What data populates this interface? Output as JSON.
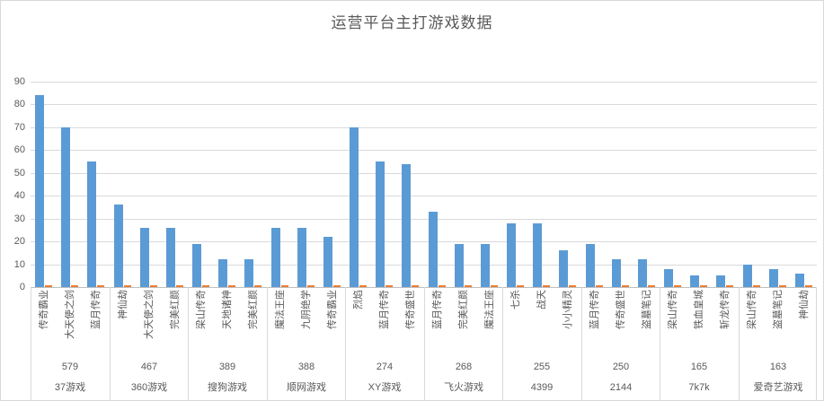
{
  "chart_data": {
    "type": "bar",
    "title": "运营平台主打游戏数据",
    "xlabel": "",
    "ylabel": "",
    "ylim": [
      0,
      90
    ],
    "yticks": [
      0,
      10,
      20,
      30,
      40,
      50,
      60,
      70,
      80,
      90
    ],
    "grid": true,
    "legend": "none",
    "axis_levels": [
      "game-name",
      "group-total",
      "platform-name"
    ],
    "colors": {
      "bar": "#5b9bd5",
      "secondary_marker": "#ed7d31",
      "text": "#595959",
      "gridline": "#d9d9d9",
      "axis_line": "#bfbfbf"
    },
    "secondary_series_value": 0.5,
    "groups": [
      {
        "platform": "37游戏",
        "total": "579",
        "games": [
          {
            "name": "传奇霸业",
            "value": 84
          },
          {
            "name": "大天使之剑",
            "value": 70
          },
          {
            "name": "蓝月传奇",
            "value": 55
          }
        ]
      },
      {
        "platform": "360游戏",
        "total": "467",
        "games": [
          {
            "name": "神仙劫",
            "value": 36
          },
          {
            "name": "大天使之剑",
            "value": 26
          },
          {
            "name": "完美红颜",
            "value": 26
          }
        ]
      },
      {
        "platform": "搜狗游戏",
        "total": "389",
        "games": [
          {
            "name": "梁山传奇",
            "value": 19
          },
          {
            "name": "天地诸神",
            "value": 12
          },
          {
            "name": "完美红颜",
            "value": 12
          }
        ]
      },
      {
        "platform": "顺网游戏",
        "total": "388",
        "games": [
          {
            "name": "魔法王座",
            "value": 26
          },
          {
            "name": "九阴绝学",
            "value": 26
          },
          {
            "name": "传奇霸业",
            "value": 22
          }
        ]
      },
      {
        "platform": "XY游戏",
        "total": "274",
        "games": [
          {
            "name": "烈焰",
            "value": 70
          },
          {
            "name": "蓝月传奇",
            "value": 55
          },
          {
            "name": "传奇盛世",
            "value": 54
          }
        ]
      },
      {
        "platform": "飞火游戏",
        "total": "268",
        "games": [
          {
            "name": "蓝月传奇",
            "value": 33
          },
          {
            "name": "完美红颜",
            "value": 19
          },
          {
            "name": "魔法王座",
            "value": 19
          }
        ]
      },
      {
        "platform": "4399",
        "total": "255",
        "games": [
          {
            "name": "七杀",
            "value": 28
          },
          {
            "name": "战天",
            "value": 28
          },
          {
            "name": "小小精灵",
            "value": 16
          }
        ]
      },
      {
        "platform": "2144",
        "total": "250",
        "games": [
          {
            "name": "蓝月传奇",
            "value": 19
          },
          {
            "name": "传奇盛世",
            "value": 12
          },
          {
            "name": "盗墓笔记",
            "value": 12
          }
        ]
      },
      {
        "platform": "7k7k",
        "total": "165",
        "games": [
          {
            "name": "梁山传奇",
            "value": 8
          },
          {
            "name": "铁血皇城",
            "value": 5
          },
          {
            "name": "斩龙传奇",
            "value": 5
          }
        ]
      },
      {
        "platform": "爱奇艺游戏",
        "total": "163",
        "games": [
          {
            "name": "梁山传奇",
            "value": 10
          },
          {
            "name": "盗墓笔记",
            "value": 8
          },
          {
            "name": "神仙劫",
            "value": 6
          }
        ]
      }
    ]
  }
}
